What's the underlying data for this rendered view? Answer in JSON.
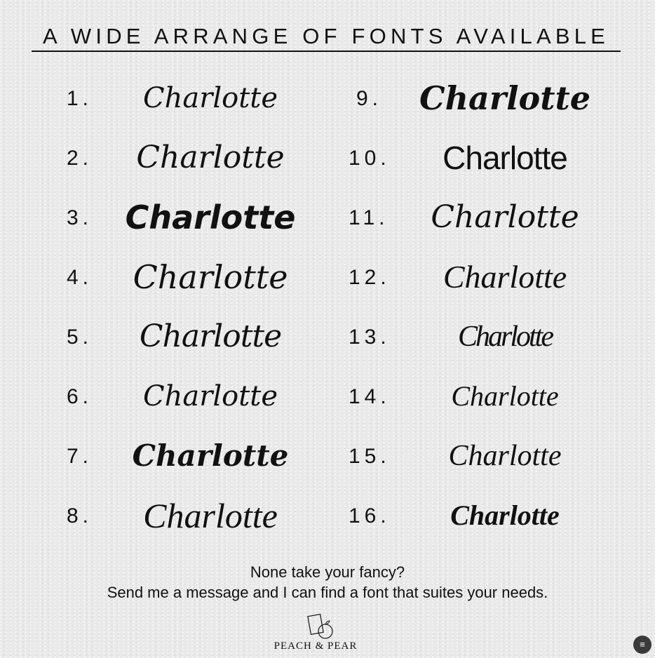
{
  "title": "A WIDE ARRANGE OF FONTS AVAILABLE",
  "sample_text": "Charlotte",
  "fonts": [
    {
      "number": "1."
    },
    {
      "number": "2."
    },
    {
      "number": "3."
    },
    {
      "number": "4."
    },
    {
      "number": "5."
    },
    {
      "number": "6."
    },
    {
      "number": "7."
    },
    {
      "number": "8."
    },
    {
      "number": "9."
    },
    {
      "number": "10."
    },
    {
      "number": "11."
    },
    {
      "number": "12."
    },
    {
      "number": "13."
    },
    {
      "number": "14."
    },
    {
      "number": "15."
    },
    {
      "number": "16."
    }
  ],
  "footer": {
    "line1": "None take your fancy?",
    "line2": "Send me a message and I can find a font that suites your needs."
  },
  "brand": "PEACH & PEAR",
  "icons": {
    "logo": "notebook-peach-logo",
    "scan": "scan-text-icon"
  }
}
